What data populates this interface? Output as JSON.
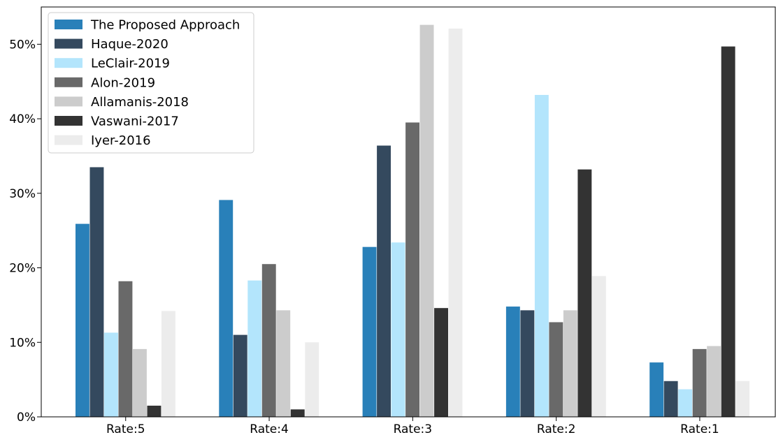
{
  "chart_data": {
    "type": "bar",
    "title": "",
    "xlabel": "",
    "ylabel": "",
    "categories": [
      "Rate:5",
      "Rate:4",
      "Rate:3",
      "Rate:2",
      "Rate:1"
    ],
    "ylim": [
      0,
      55
    ],
    "yticks": [
      0,
      10,
      20,
      30,
      40,
      50
    ],
    "ytick_labels": [
      "0%",
      "10%",
      "20%",
      "30%",
      "40%",
      "50%"
    ],
    "grid": false,
    "legend_position": "top-left",
    "series": [
      {
        "name": "The Proposed Approach",
        "color": "#2980b9",
        "values": [
          25.9,
          29.1,
          22.8,
          14.8,
          7.3
        ]
      },
      {
        "name": "Haque-2020",
        "color": "#34495e",
        "values": [
          33.5,
          11.0,
          36.4,
          14.3,
          4.8
        ]
      },
      {
        "name": "LeClair-2019",
        "color": "#b3e5fc",
        "values": [
          11.3,
          18.3,
          23.4,
          43.2,
          3.7
        ]
      },
      {
        "name": "Alon-2019",
        "color": "#696969",
        "values": [
          18.2,
          20.5,
          39.5,
          12.7,
          9.1
        ]
      },
      {
        "name": "Allamanis-2018",
        "color": "#cccccc",
        "values": [
          9.1,
          14.3,
          52.6,
          14.3,
          9.5
        ]
      },
      {
        "name": "Vaswani-2017",
        "color": "#333333",
        "values": [
          1.5,
          1.0,
          14.6,
          33.2,
          49.7
        ]
      },
      {
        "name": "Iyer-2016",
        "color": "#ececec",
        "values": [
          14.2,
          10.0,
          52.1,
          18.9,
          4.8
        ]
      }
    ]
  }
}
